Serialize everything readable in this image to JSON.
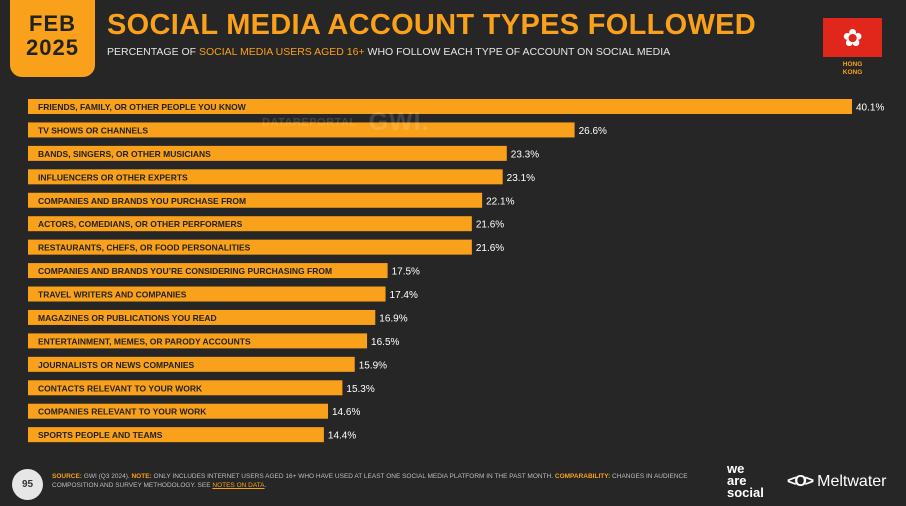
{
  "badge": {
    "month": "FEB",
    "year": "2025"
  },
  "header": {
    "title": "SOCIAL MEDIA ACCOUNT TYPES FOLLOWED",
    "subtitle_pre": "PERCENTAGE OF ",
    "subtitle_highlight": "SOCIAL MEDIA USERS AGED 16+",
    "subtitle_post": " WHO FOLLOW EACH TYPE OF ACCOUNT ON SOCIAL MEDIA"
  },
  "flag": {
    "label_line1": "HONG",
    "label_line2": "KONG",
    "glyph": "✿"
  },
  "watermark": {
    "datareportal": "DATAREPORTAL",
    "gwi": "GWI."
  },
  "colors": {
    "accent": "#F9A11B",
    "background": "#262626",
    "flag_red": "#E1261C"
  },
  "chart_data": {
    "type": "bar",
    "orientation": "horizontal",
    "categories": [
      "FRIENDS, FAMILY, OR OTHER PEOPLE YOU KNOW",
      "TV SHOWS OR CHANNELS",
      "BANDS, SINGERS, OR OTHER MUSICIANS",
      "INFLUENCERS OR OTHER EXPERTS",
      "COMPANIES AND BRANDS YOU PURCHASE FROM",
      "ACTORS, COMEDIANS, OR OTHER PERFORMERS",
      "RESTAURANTS, CHEFS, OR FOOD PERSONALITIES",
      "COMPANIES AND BRANDS YOU’RE CONSIDERING PURCHASING FROM",
      "TRAVEL WRITERS AND COMPANIES",
      "MAGAZINES OR PUBLICATIONS YOU READ",
      "ENTERTAINMENT, MEMES, OR PARODY ACCOUNTS",
      "JOURNALISTS OR NEWS COMPANIES",
      "CONTACTS RELEVANT TO YOUR WORK",
      "COMPANIES RELEVANT TO YOUR WORK",
      "SPORTS PEOPLE AND TEAMS"
    ],
    "values": [
      40.1,
      26.6,
      23.3,
      23.1,
      22.1,
      21.6,
      21.6,
      17.5,
      17.4,
      16.9,
      16.5,
      15.9,
      15.3,
      14.6,
      14.4
    ],
    "value_labels": [
      "40.1%",
      "26.6%",
      "23.3%",
      "23.1%",
      "22.1%",
      "21.6%",
      "21.6%",
      "17.5%",
      "17.4%",
      "16.9%",
      "16.5%",
      "15.9%",
      "15.3%",
      "14.6%",
      "14.4%"
    ],
    "bar_color": "#F9A11B",
    "xlim": [
      0,
      40.1
    ],
    "grid": false,
    "legend": "none"
  },
  "footer": {
    "page_number": "95",
    "source_label": "SOURCE:",
    "source_text_1": " GWI (Q3 2024). ",
    "note_label": "NOTE:",
    "note_text": " ONLY INCLUDES INTERNET USERS AGED 16+ WHO HAVE USED AT LEAST ONE SOCIAL MEDIA PLATFORM IN THE PAST MONTH. ",
    "comparability_label": "COMPARABILITY:",
    "comparability_text": " CHANGES IN AUDIENCE COMPOSITION AND SURVEY METHODOLOGY. SEE ",
    "notes_link": "NOTES ON DATA",
    "end": "."
  },
  "logos": {
    "was_1": "we",
    "was_2": "are",
    "was_3": "social",
    "meltwater_icon": "<O>",
    "meltwater": "Meltwater"
  }
}
